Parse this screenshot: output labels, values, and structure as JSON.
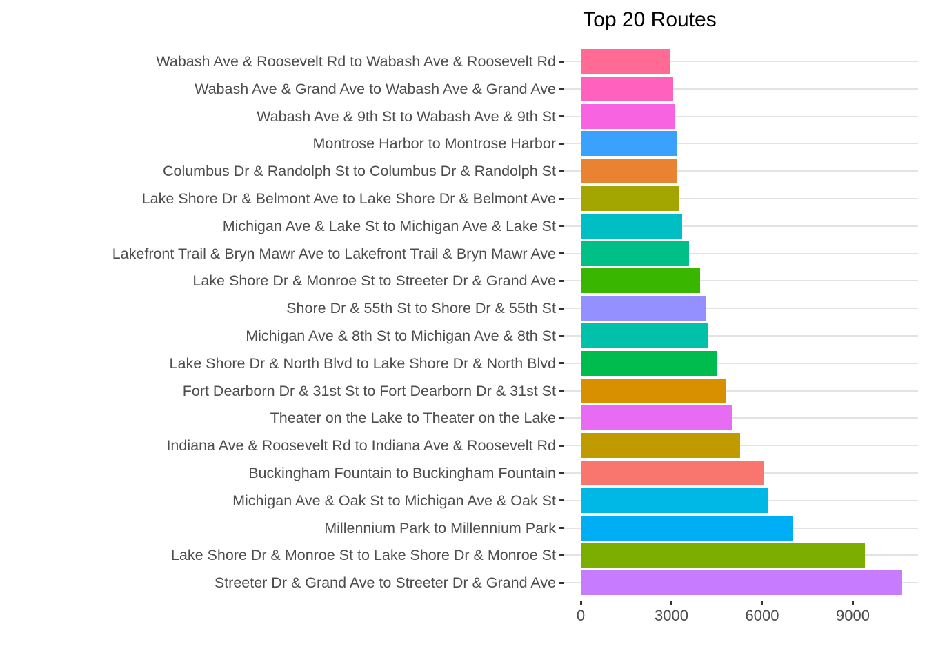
{
  "title": "Top 20 Routes",
  "chart_data": {
    "type": "bar",
    "orientation": "horizontal",
    "title": "Top 20 Routes",
    "xlabel": "",
    "ylabel": "",
    "xlim": [
      0,
      10900
    ],
    "x_ticks": [
      0,
      3000,
      6000,
      9000
    ],
    "grid": "horizontal major gridlines only, light gray on white background",
    "legend_position": "none",
    "row_order": "top to bottom as displayed (ascending values)",
    "categories": [
      "Wabash Ave & Roosevelt Rd to Wabash Ave & Roosevelt Rd",
      "Wabash Ave & Grand Ave to Wabash Ave & Grand Ave",
      "Wabash Ave & 9th St to Wabash Ave & 9th St",
      "Montrose Harbor to Montrose Harbor",
      "Columbus Dr & Randolph St to Columbus Dr & Randolph St",
      "Lake Shore Dr & Belmont Ave to Lake Shore Dr & Belmont Ave",
      "Michigan Ave & Lake St to Michigan Ave & Lake St",
      "Lakefront Trail & Bryn Mawr Ave to Lakefront Trail & Bryn Mawr Ave",
      "Lake Shore Dr & Monroe St to Streeter Dr & Grand Ave",
      "Shore Dr & 55th St to Shore Dr & 55th St",
      "Michigan Ave & 8th St to Michigan Ave & 8th St",
      "Lake Shore Dr & North Blvd to Lake Shore Dr & North Blvd",
      "Fort Dearborn Dr & 31st St to Fort Dearborn Dr & 31st St",
      "Theater on the Lake to Theater on the Lake",
      "Indiana Ave & Roosevelt Rd to Indiana Ave & Roosevelt Rd",
      "Buckingham Fountain to Buckingham Fountain",
      "Michigan Ave & Oak St to Michigan Ave & Oak St",
      "Millennium Park to Millennium Park",
      "Lake Shore Dr & Monroe St to Lake Shore Dr & Monroe St",
      "Streeter Dr & Grand Ave to Streeter Dr & Grand Ave"
    ],
    "values": [
      2950,
      3050,
      3130,
      3170,
      3190,
      3230,
      3360,
      3580,
      3940,
      4140,
      4200,
      4510,
      4820,
      5010,
      5280,
      6060,
      6210,
      7020,
      9410,
      10640
    ],
    "colors": [
      "#FF6B94",
      "#FF61BF",
      "#F763E0",
      "#3AA2FC",
      "#EA8331",
      "#A3A500",
      "#00BFC4",
      "#00C087",
      "#39B600",
      "#9590FF",
      "#00C1A9",
      "#00BB4E",
      "#D89000",
      "#E76BF3",
      "#C09B00",
      "#F8766D",
      "#00B8E5",
      "#00AEF5",
      "#7CAE00",
      "#C77CFF"
    ]
  },
  "style_colors": {
    "background": "#FFFFFF",
    "gridline": "#E3E3E3",
    "axis_tick": "#333333",
    "axis_text": "#4D4D4D",
    "title_text": "#000000"
  }
}
